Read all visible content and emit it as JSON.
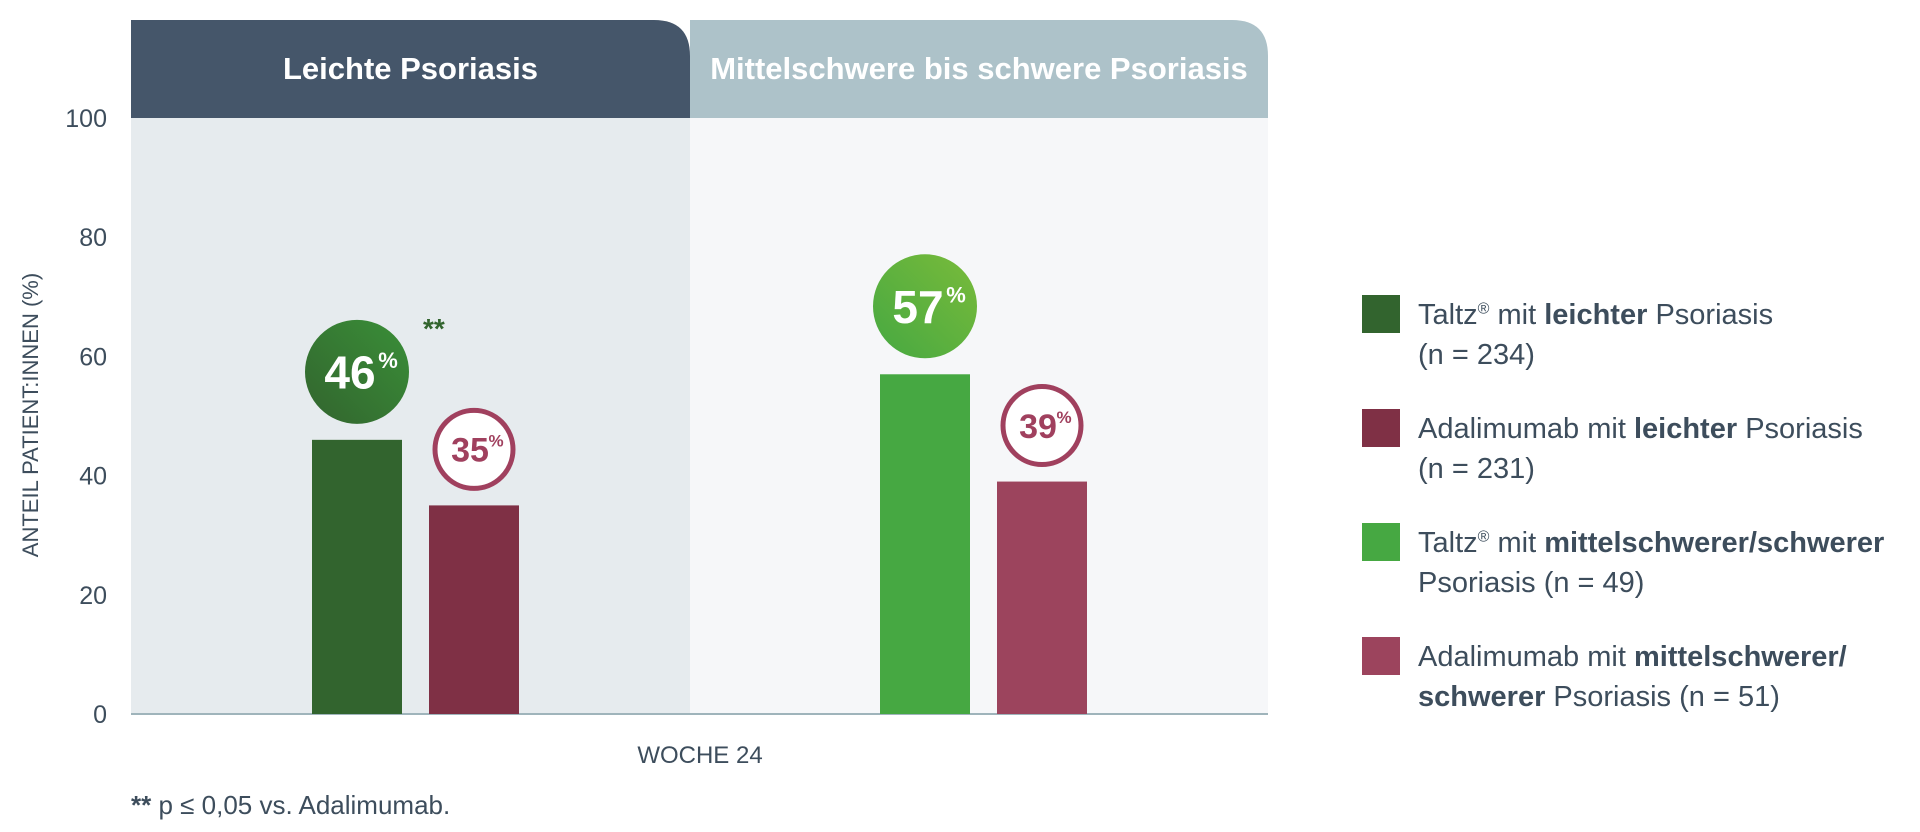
{
  "chart_data": {
    "type": "bar",
    "ylabel": "ANTEIL PATIENT:INNEN (%)",
    "xlabel": "WOCHE 24",
    "ylim": [
      0,
      100
    ],
    "yticks": [
      0,
      20,
      40,
      60,
      80,
      100
    ],
    "grid": false,
    "panels": [
      {
        "title": "Leichte Psoriasis",
        "header_color": "#45566a",
        "bg_color": "#e6ebee"
      },
      {
        "title": "Mittelschwere bis schwere Psoriasis",
        "header_color": "#adc2c9",
        "bg_color": "#f6f7f9"
      }
    ],
    "series": [
      {
        "name": "Taltz® mit leichter Psoriasis (n=234)",
        "panel": 0,
        "value": 46,
        "label_num": "46",
        "label_unit": "%",
        "color": "#32642e",
        "badge": "filled",
        "badge_color": "#3a8f38",
        "significance": "**"
      },
      {
        "name": "Adalimumab mit leichter Psoriasis (n=231)",
        "panel": 0,
        "value": 35,
        "label_num": "35",
        "label_unit": "%",
        "color": "#7f3045",
        "badge": "outline",
        "badge_color": "#a0405e",
        "significance": ""
      },
      {
        "name": "Taltz® mit mittelschwerer/schwerer Psoriasis (n=49)",
        "panel": 1,
        "value": 57,
        "label_num": "57",
        "label_unit": "%",
        "color": "#46a842",
        "badge": "filled",
        "badge_color": "#79bb3a",
        "significance": ""
      },
      {
        "name": "Adalimumab mit mittelschwerer/schwerer Psoriasis (n=51)",
        "panel": 1,
        "value": 39,
        "label_num": "39",
        "label_unit": "%",
        "color": "#9c445d",
        "badge": "outline",
        "badge_color": "#a0405e",
        "significance": ""
      }
    ]
  },
  "legend": [
    {
      "color": "#32642e",
      "pre": "Taltz",
      "reg": "®",
      "mid": " mit ",
      "bold": "leichter",
      "post": " Psoriasis",
      "line2": "(n = 234)"
    },
    {
      "color": "#7f3045",
      "pre": "Adalimumab",
      "reg": "",
      "mid": " mit ",
      "bold": "leichter",
      "post": " Psoriasis",
      "line2": "(n = 231)"
    },
    {
      "color": "#46a842",
      "pre": "Taltz",
      "reg": "®",
      "mid": " mit ",
      "bold": "mittelschwerer/schwerer",
      "post": "",
      "line2": "Psoriasis (n = 49)"
    },
    {
      "color": "#9c445d",
      "pre": "Adalimumab",
      "reg": "",
      "mid": " mit ",
      "bold": "mittelschwerer/",
      "post": "",
      "line2_bold": "schwerer",
      "line2": " Psoriasis (n = 51)"
    }
  ],
  "footnote": {
    "mark": "**",
    "text": " p ≤ 0,05 vs. Adalimumab."
  }
}
